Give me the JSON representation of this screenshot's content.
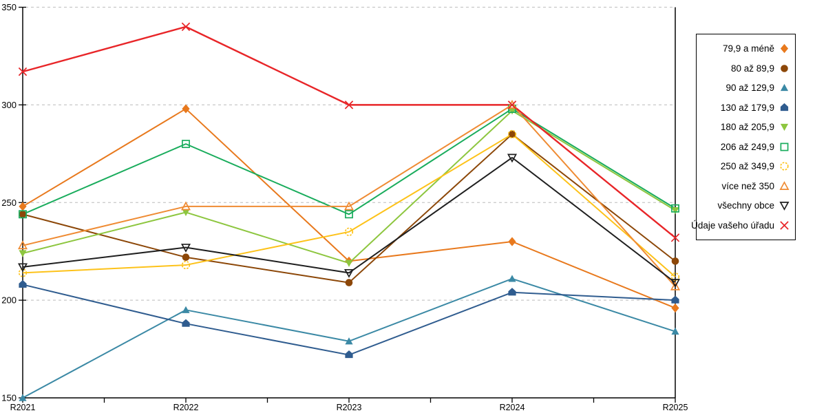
{
  "chart_data": {
    "type": "line",
    "title": "",
    "xlabel": "",
    "ylabel": "",
    "categories": [
      "R2021",
      "R2022",
      "R2023",
      "R2024",
      "R2025"
    ],
    "ylim": [
      150,
      350
    ],
    "yticks": [
      350,
      300,
      250,
      200,
      150
    ],
    "grid": "horizontal-dashed",
    "legend_position": "right-box",
    "series": [
      {
        "name": "79,9 a méně",
        "marker": "diamond",
        "style": "solid",
        "color": "#E8791D",
        "values": [
          248,
          298,
          220,
          230,
          196
        ]
      },
      {
        "name": "80 až 89,9",
        "marker": "circle",
        "style": "solid",
        "color": "#8C4708",
        "values": [
          244,
          222,
          209,
          285,
          220
        ]
      },
      {
        "name": "90 až 129,9",
        "marker": "triangle-up",
        "style": "solid",
        "color": "#3B89A5",
        "values": [
          150,
          195,
          179,
          211,
          184
        ]
      },
      {
        "name": "130 až 179,9",
        "marker": "pentagon",
        "style": "solid",
        "color": "#2F5C8F",
        "values": [
          208,
          188,
          172,
          204,
          200
        ]
      },
      {
        "name": "180 až 205,9",
        "marker": "triangle-down",
        "style": "solid",
        "color": "#8DC63F",
        "values": [
          224,
          245,
          219,
          297,
          246
        ]
      },
      {
        "name": "206 až 249,9",
        "marker": "square",
        "style": "open",
        "color": "#19AC5C",
        "values": [
          244,
          280,
          244,
          298,
          247
        ]
      },
      {
        "name": "250 až 349,9",
        "marker": "circle-dashed",
        "style": "open",
        "color": "#FDC219",
        "values": [
          214,
          218,
          235,
          285,
          212
        ]
      },
      {
        "name": "více než 350",
        "marker": "triangle-up",
        "style": "open",
        "color": "#EF8B33",
        "values": [
          228,
          248,
          248,
          300,
          207
        ]
      },
      {
        "name": "všechny obce",
        "marker": "triangle-down",
        "style": "open",
        "color": "#1F1F1F",
        "values": [
          217,
          227,
          214,
          273,
          209
        ]
      },
      {
        "name": "Údaje vašeho úřadu",
        "marker": "x",
        "style": "open",
        "color": "#E82528",
        "values": [
          317,
          340,
          300,
          300,
          232
        ]
      }
    ]
  },
  "colors": {
    "background": "#FFFFFF",
    "grid": "#C7C7C7",
    "axis": "#000000",
    "tick_label": "#000000",
    "legend_border": "#000000"
  }
}
